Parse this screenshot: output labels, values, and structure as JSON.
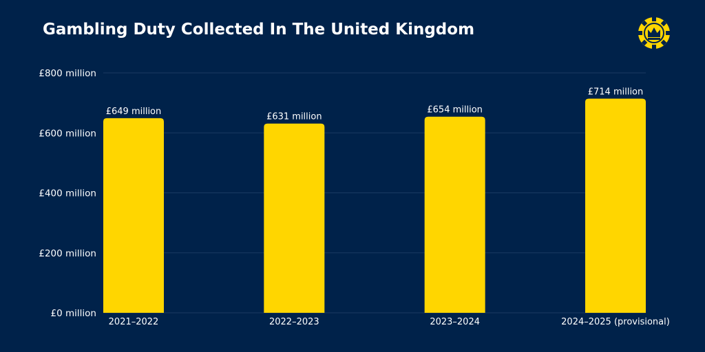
{
  "chart_data": {
    "type": "bar",
    "title": "Gambling Duty Collected In The United Kingdom",
    "categories": [
      "2021–2022",
      "2022–2023",
      "2023–2024",
      "2024–2025 (provisional)"
    ],
    "values": [
      649,
      631,
      654,
      714
    ],
    "data_labels": [
      "£649 million",
      "£631 million",
      "£654 million",
      "£714 million"
    ],
    "y_ticks": [
      0,
      200,
      400,
      600,
      800
    ],
    "y_tick_labels": [
      "£0 million",
      "£200 million",
      "£400 million",
      "£600 million",
      "£800 million"
    ],
    "ylim": [
      0,
      800
    ],
    "grid": true,
    "xlabel": "",
    "ylabel": ""
  },
  "colors": {
    "background": "#00224a",
    "bar": "#ffd600",
    "grid": "#1b3a63",
    "text": "#ffffff"
  },
  "logo": {
    "icon": "crown-chip-icon"
  }
}
